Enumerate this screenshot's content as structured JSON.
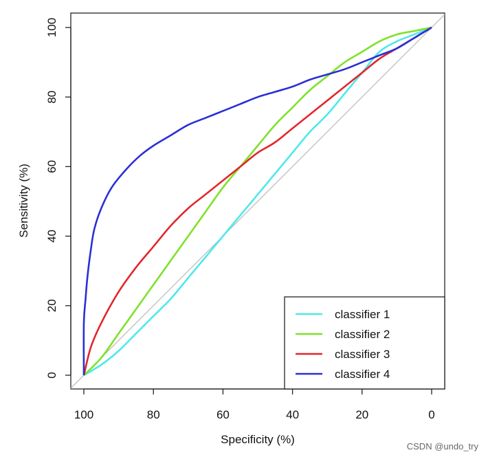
{
  "chart_data": {
    "type": "line",
    "xlabel": "Specificity (%)",
    "ylabel": "Sensitivity (%)",
    "xlim": [
      100,
      0
    ],
    "ylim": [
      0,
      100
    ],
    "x_reversed": true,
    "x_ticks": [
      "100",
      "80",
      "60",
      "40",
      "20",
      "0"
    ],
    "y_ticks": [
      "0",
      "20",
      "40",
      "60",
      "80",
      "100"
    ],
    "grid": false,
    "legend_position": "bottom-right",
    "reference_line": {
      "from": [
        100,
        0
      ],
      "to": [
        0,
        100
      ],
      "color": "#bdbdbd"
    },
    "series": [
      {
        "name": "classifier 1",
        "color": "#4ee8ec",
        "points": [
          [
            100,
            0
          ],
          [
            95,
            3
          ],
          [
            90,
            7
          ],
          [
            85,
            12
          ],
          [
            80,
            17
          ],
          [
            75,
            22
          ],
          [
            70,
            28
          ],
          [
            65,
            34
          ],
          [
            60,
            40
          ],
          [
            55,
            46
          ],
          [
            50,
            52
          ],
          [
            45,
            58
          ],
          [
            40,
            64
          ],
          [
            35,
            70
          ],
          [
            30,
            75
          ],
          [
            25,
            81
          ],
          [
            20,
            87
          ],
          [
            15,
            93
          ],
          [
            10,
            96
          ],
          [
            5,
            98
          ],
          [
            0,
            100
          ]
        ]
      },
      {
        "name": "classifier 2",
        "color": "#7ee22a",
        "points": [
          [
            100,
            0
          ],
          [
            95,
            5
          ],
          [
            90,
            12
          ],
          [
            85,
            19
          ],
          [
            80,
            26
          ],
          [
            75,
            33
          ],
          [
            70,
            40
          ],
          [
            65,
            47
          ],
          [
            60,
            54
          ],
          [
            55,
            60
          ],
          [
            50,
            66
          ],
          [
            45,
            72
          ],
          [
            40,
            77
          ],
          [
            35,
            82
          ],
          [
            30,
            86
          ],
          [
            25,
            90
          ],
          [
            20,
            93
          ],
          [
            15,
            96
          ],
          [
            10,
            98
          ],
          [
            5,
            99
          ],
          [
            0,
            100
          ]
        ]
      },
      {
        "name": "classifier 3",
        "color": "#e2262c",
        "points": [
          [
            100,
            0
          ],
          [
            98,
            8
          ],
          [
            95,
            15
          ],
          [
            90,
            24
          ],
          [
            85,
            31
          ],
          [
            80,
            37
          ],
          [
            75,
            43
          ],
          [
            70,
            48
          ],
          [
            65,
            52
          ],
          [
            60,
            56
          ],
          [
            55,
            60
          ],
          [
            50,
            64
          ],
          [
            45,
            67
          ],
          [
            40,
            71
          ],
          [
            35,
            75
          ],
          [
            30,
            79
          ],
          [
            25,
            83
          ],
          [
            20,
            87
          ],
          [
            15,
            91
          ],
          [
            10,
            94
          ],
          [
            5,
            97
          ],
          [
            0,
            100
          ]
        ]
      },
      {
        "name": "classifier 4",
        "color": "#2a2fd6",
        "points": [
          [
            100,
            0
          ],
          [
            100,
            15
          ],
          [
            99.5,
            22
          ],
          [
            99,
            28
          ],
          [
            98,
            36
          ],
          [
            97,
            42
          ],
          [
            95,
            48
          ],
          [
            92,
            54
          ],
          [
            88,
            59
          ],
          [
            84,
            63
          ],
          [
            80,
            66
          ],
          [
            75,
            69
          ],
          [
            70,
            72
          ],
          [
            65,
            74
          ],
          [
            60,
            76
          ],
          [
            55,
            78
          ],
          [
            50,
            80
          ],
          [
            45,
            81.5
          ],
          [
            40,
            83
          ],
          [
            35,
            85
          ],
          [
            30,
            86.5
          ],
          [
            25,
            88
          ],
          [
            20,
            90
          ],
          [
            15,
            92
          ],
          [
            10,
            94
          ],
          [
            5,
            97
          ],
          [
            0,
            100
          ]
        ]
      }
    ]
  },
  "watermark": "CSDN @undo_try"
}
